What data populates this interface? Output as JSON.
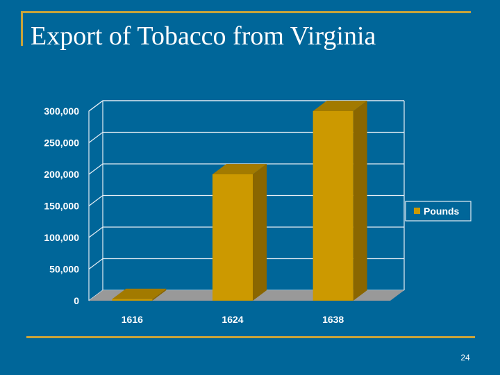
{
  "slide": {
    "title": "Export of Tobacco from Virginia",
    "page_number": "24"
  },
  "colors": {
    "background": "#006699",
    "accent_rule": "#c8a43a",
    "bar_front": "#cc9900",
    "bar_side": "#8a6600",
    "bar_top": "#a27a00",
    "floor": "#999999",
    "grid": "#e6eef5"
  },
  "chart_data": {
    "type": "bar",
    "categories": [
      "1616",
      "1624",
      "1638"
    ],
    "series": [
      {
        "name": "Pounds",
        "values": [
          2500,
          200000,
          300000
        ]
      }
    ],
    "ylim": [
      0,
      300000
    ],
    "yticks": [
      "0",
      "50,000",
      "100,000",
      "150,000",
      "200,000",
      "250,000",
      "300,000"
    ],
    "grid": true,
    "legend": "right",
    "style": "3d-column"
  }
}
